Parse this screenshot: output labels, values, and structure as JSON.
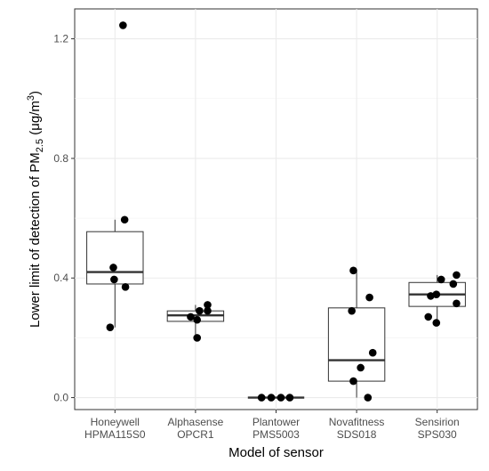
{
  "chart_data": {
    "type": "box",
    "xlabel": "Model of sensor",
    "ylabel_parts": [
      "Lower limit of detection of PM",
      "2.5",
      " (μg/m",
      "3",
      ")"
    ],
    "ylim": [
      -0.04,
      1.3
    ],
    "yticks": [
      0.0,
      0.4,
      0.8,
      1.2
    ],
    "ytick_labels": [
      "0.0",
      "0.4",
      "0.8",
      "1.2"
    ],
    "grid": true,
    "categories": [
      {
        "line1": "Honeywell",
        "line2": "HPMA115S0"
      },
      {
        "line1": "Alphasense",
        "line2": "OPCR1"
      },
      {
        "line1": "Plantower",
        "line2": "PMS5003"
      },
      {
        "line1": "Novafitness",
        "line2": "SDS018"
      },
      {
        "line1": "Sensirion",
        "line2": "SPS030"
      }
    ],
    "boxes": [
      {
        "q1": 0.38,
        "median": 0.42,
        "q3": 0.555,
        "whisker_low": 0.235,
        "whisker_high": 0.595
      },
      {
        "q1": 0.255,
        "median": 0.275,
        "q3": 0.29,
        "whisker_low": 0.2,
        "whisker_high": 0.31
      },
      {
        "q1": 0.0,
        "median": 0.0,
        "q3": 0.0,
        "whisker_low": 0.0,
        "whisker_high": 0.0
      },
      {
        "q1": 0.055,
        "median": 0.125,
        "q3": 0.3,
        "whisker_low": 0.0,
        "whisker_high": 0.425
      },
      {
        "q1": 0.305,
        "median": 0.345,
        "q3": 0.385,
        "whisker_low": 0.25,
        "whisker_high": 0.41
      }
    ],
    "points": [
      [
        {
          "y": 1.245,
          "j": 0.1
        },
        {
          "y": 0.595,
          "j": 0.12
        },
        {
          "y": 0.435,
          "j": -0.02
        },
        {
          "y": 0.395,
          "j": -0.01
        },
        {
          "y": 0.37,
          "j": 0.13
        },
        {
          "y": 0.235,
          "j": -0.06
        }
      ],
      [
        {
          "y": 0.31,
          "j": 0.15
        },
        {
          "y": 0.29,
          "j": 0.05
        },
        {
          "y": 0.29,
          "j": 0.15
        },
        {
          "y": 0.27,
          "j": -0.06
        },
        {
          "y": 0.26,
          "j": 0.02
        },
        {
          "y": 0.2,
          "j": 0.02
        }
      ],
      [
        {
          "y": 0.0,
          "j": -0.18
        },
        {
          "y": 0.0,
          "j": -0.06
        },
        {
          "y": 0.0,
          "j": 0.06
        },
        {
          "y": 0.0,
          "j": 0.17
        }
      ],
      [
        {
          "y": 0.425,
          "j": -0.04
        },
        {
          "y": 0.335,
          "j": 0.16
        },
        {
          "y": 0.29,
          "j": -0.06
        },
        {
          "y": 0.15,
          "j": 0.2
        },
        {
          "y": 0.1,
          "j": 0.05
        },
        {
          "y": 0.055,
          "j": -0.04
        },
        {
          "y": 0.0,
          "j": 0.14
        }
      ],
      [
        {
          "y": 0.41,
          "j": 0.24
        },
        {
          "y": 0.395,
          "j": 0.05
        },
        {
          "y": 0.38,
          "j": 0.2
        },
        {
          "y": 0.345,
          "j": -0.01
        },
        {
          "y": 0.34,
          "j": -0.08
        },
        {
          "y": 0.315,
          "j": 0.24
        },
        {
          "y": 0.27,
          "j": -0.11
        },
        {
          "y": 0.25,
          "j": -0.01
        }
      ]
    ]
  }
}
